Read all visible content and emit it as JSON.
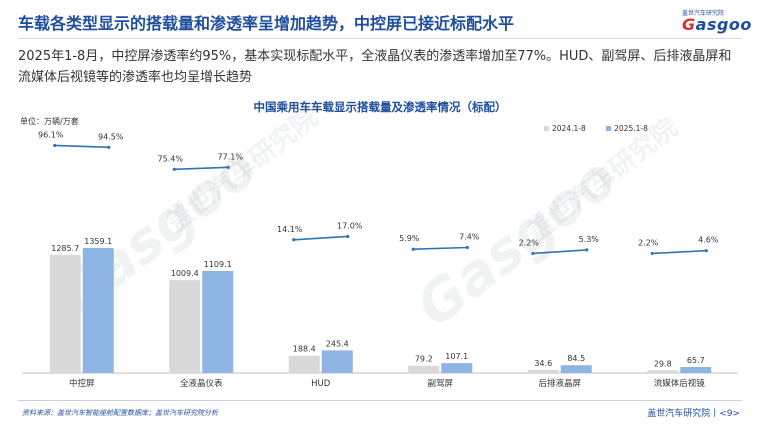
{
  "header": {
    "title": "车载各类型显示的搭载量和渗透率呈增加趋势，中控屏已接近标配水平",
    "logo_sub": "盖世汽车研究院",
    "logo_main_g": "G",
    "logo_main_rest": "asgoo"
  },
  "summary": "2025年1-8月，中控屏渗透率约95%，基本实现标配水平，全液晶仪表的渗透率增加至77%。HUD、副驾屏、后排液晶屏和流媒体后视镜等的渗透率也均呈增长趋势",
  "watermark": {
    "brand": "Gasgoo",
    "brand_cn": "盖世汽车研究院"
  },
  "footer": {
    "source": "资料来源：盖世汽车智能座舱配置数据库；盖世汽车研究院分析",
    "page": "盖世汽车研究院丨<9>"
  },
  "chart_data": {
    "type": "bar",
    "title": "中国乘用车车载显示搭载量及渗透率情况（标配）",
    "unit_label": "单位：万辆/万套",
    "categories": [
      "中控屏",
      "全液晶仪表",
      "HUD",
      "副驾屏",
      "后排液晶屏",
      "流媒体后视镜"
    ],
    "series": [
      {
        "name": "2024.1-8",
        "color": "#d9d9d9",
        "values": [
          1285.7,
          1009.4,
          188.4,
          79.2,
          34.6,
          29.8
        ],
        "labels": [
          "1285.7",
          "1009.4",
          "188.4",
          "79.2",
          "34.6",
          "29.8"
        ]
      },
      {
        "name": "2025.1-8",
        "color": "#8eb4e3",
        "values": [
          1359.1,
          1109.1,
          245.4,
          107.1,
          84.5,
          65.7
        ],
        "labels": [
          "1359.1",
          "1109.1",
          "245.4",
          "107.1",
          "84.5",
          "65.7"
        ]
      }
    ],
    "penetration": {
      "line_color": "#2e75b6",
      "pairs": [
        {
          "from": 96.1,
          "to": 94.5,
          "from_label": "96.1%",
          "to_label": "94.5%"
        },
        {
          "from": 75.4,
          "to": 77.1,
          "from_label": "75.4%",
          "to_label": "77.1%"
        },
        {
          "from": 14.1,
          "to": 17.0,
          "from_label": "14.1%",
          "to_label": "17.0%"
        },
        {
          "from": 5.9,
          "to": 7.4,
          "from_label": "5.9%",
          "to_label": "7.4%"
        },
        {
          "from": 2.2,
          "to": 5.3,
          "from_label": "2.2%",
          "to_label": "5.3%"
        },
        {
          "from": 2.2,
          "to": 4.6,
          "from_label": "2.2%",
          "to_label": "4.6%"
        }
      ]
    },
    "legend_position": "top-right",
    "grid": false
  }
}
